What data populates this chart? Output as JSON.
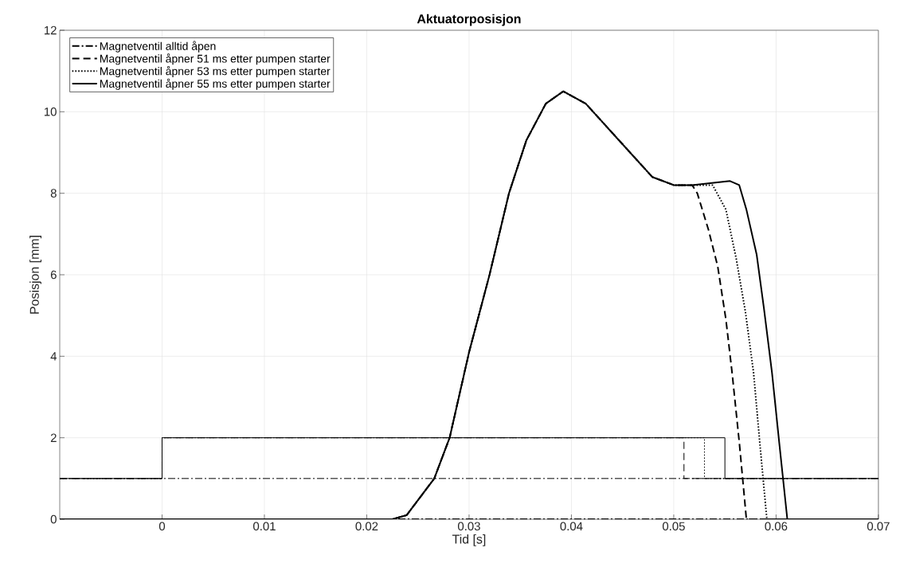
{
  "chart_data": {
    "type": "line",
    "title": "Aktuatorposisjon",
    "xlabel": "Tid [s]",
    "ylabel": "Posisjon [mm]",
    "xlim": [
      -0.01,
      0.07
    ],
    "ylim": [
      0,
      12
    ],
    "xticks": [
      0,
      0.01,
      0.02,
      0.03,
      0.04,
      0.05,
      0.06,
      0.07
    ],
    "yticks": [
      0,
      2,
      4,
      6,
      8,
      10,
      12
    ],
    "grid": true,
    "legend": "top left",
    "series": [
      {
        "name": "Magnetventil alltid åpen",
        "color": "#000000",
        "line_style": "dashdot",
        "x": [
          -0.01,
          0.07
        ],
        "values": [
          0,
          0
        ]
      },
      {
        "name": "Magnetventil åpner 51 ms etter pumpen starter",
        "color": "#000000",
        "line_style": "dashed",
        "x": [
          -0.01,
          0.0225,
          0.0239,
          0.0266,
          0.0281,
          0.03,
          0.032,
          0.0339,
          0.0356,
          0.0375,
          0.0392,
          0.0414,
          0.0479,
          0.05,
          0.0518,
          0.0523,
          0.0534,
          0.0543,
          0.0551,
          0.0557,
          0.0564,
          0.0571,
          0.07
        ],
        "values": [
          0,
          0,
          0.1,
          1.0,
          2.0,
          4.1,
          6.0,
          8.0,
          9.3,
          10.2,
          10.5,
          10.2,
          8.4,
          8.2,
          8.2,
          8.0,
          7.1,
          6.2,
          4.9,
          3.6,
          1.9,
          0,
          0
        ]
      },
      {
        "name": "Magnetventil åpner 53 ms etter pumpen starter",
        "color": "#000000",
        "line_style": "dotted",
        "x": [
          -0.01,
          0.0225,
          0.0239,
          0.0266,
          0.0281,
          0.03,
          0.032,
          0.0339,
          0.0356,
          0.0375,
          0.0392,
          0.0414,
          0.0479,
          0.05,
          0.0518,
          0.0538,
          0.0551,
          0.0561,
          0.057,
          0.0578,
          0.0584,
          0.0591,
          0.07
        ],
        "values": [
          0,
          0,
          0.1,
          1.0,
          2.0,
          4.1,
          6.0,
          8.0,
          9.3,
          10.2,
          10.5,
          10.2,
          8.4,
          8.2,
          8.2,
          8.2,
          7.6,
          6.4,
          5.1,
          3.6,
          1.9,
          0,
          0
        ]
      },
      {
        "name": "Magnetventil åpner 55 ms etter pumpen starter",
        "color": "#000000",
        "line_style": "solid",
        "x": [
          -0.01,
          0.0225,
          0.0239,
          0.0266,
          0.0281,
          0.03,
          0.032,
          0.0339,
          0.0356,
          0.0375,
          0.0392,
          0.0414,
          0.0479,
          0.05,
          0.0518,
          0.0555,
          0.0564,
          0.0571,
          0.0581,
          0.0588,
          0.0596,
          0.0603,
          0.0611,
          0.07
        ],
        "values": [
          0,
          0,
          0.1,
          1.0,
          2.0,
          4.1,
          6.0,
          8.0,
          9.3,
          10.2,
          10.5,
          10.2,
          8.4,
          8.2,
          8.2,
          8.3,
          8.2,
          7.6,
          6.5,
          5.2,
          3.6,
          1.9,
          0,
          0
        ]
      },
      {
        "color": "#000000",
        "line_style": "dashdot",
        "x": [
          -0.01,
          0.07
        ],
        "values": [
          1,
          1
        ]
      },
      {
        "color": "#000000",
        "line_style": "dashed",
        "x": [
          -0.01,
          0,
          0,
          0.051,
          0.051,
          0.07
        ],
        "values": [
          1,
          1,
          2,
          2,
          1,
          1
        ]
      },
      {
        "color": "#000000",
        "line_style": "dotted",
        "x": [
          -0.01,
          0,
          0,
          0.053,
          0.053,
          0.07
        ],
        "values": [
          1,
          1,
          2,
          2,
          1,
          1
        ]
      },
      {
        "color": "#000000",
        "line_style": "solid",
        "x": [
          -0.01,
          0,
          0,
          0.055,
          0.055,
          0.07
        ],
        "values": [
          1,
          1,
          2,
          2,
          1,
          1
        ]
      }
    ]
  }
}
